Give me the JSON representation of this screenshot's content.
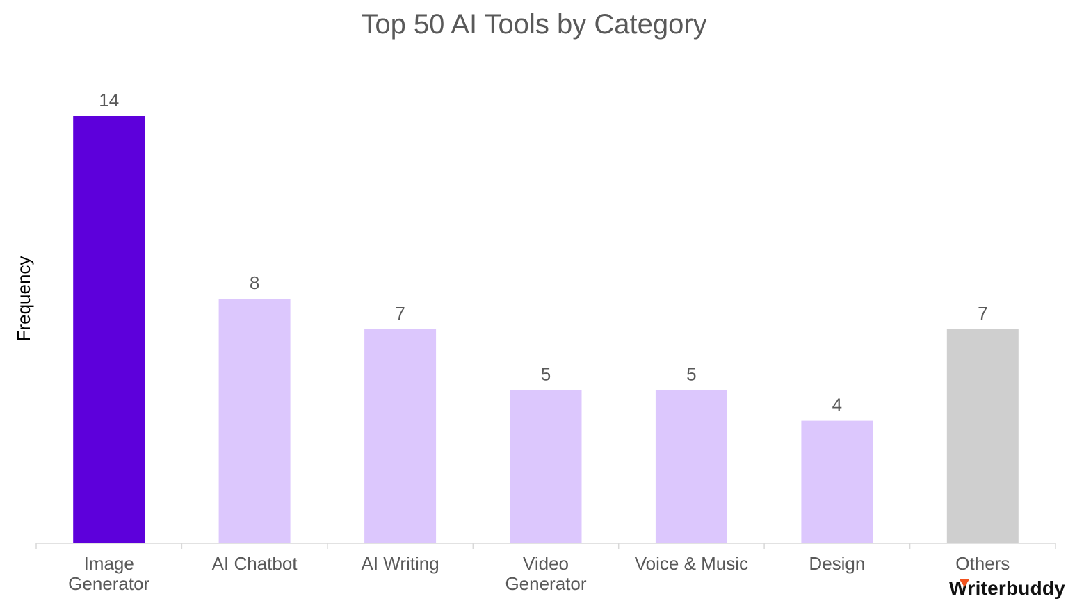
{
  "chart_data": {
    "type": "bar",
    "title": "Top 50 AI Tools by Category",
    "xlabel": "",
    "ylabel": "Frequency",
    "categories": [
      [
        "Image",
        "Generator"
      ],
      [
        "AI Chatbot"
      ],
      [
        "AI Writing"
      ],
      [
        "Video",
        "Generator"
      ],
      [
        "Voice & Music"
      ],
      [
        "Design"
      ],
      [
        "Others"
      ]
    ],
    "values": [
      14,
      8,
      7,
      5,
      5,
      4,
      7
    ],
    "data_labels": [
      "14",
      "8",
      "7",
      "5",
      "5",
      "4",
      "7"
    ],
    "colors": [
      "#5d00db",
      "#dcc7fd",
      "#dcc7fd",
      "#dcc7fd",
      "#dcc7fd",
      "#dcc7fd",
      "#cfcfcf"
    ],
    "ylim": [
      0,
      14
    ],
    "grid": false,
    "legend": "none",
    "axis_color": "#d9d9d9"
  },
  "brand": {
    "first_letter": "W",
    "rest": "riterbuddy"
  }
}
